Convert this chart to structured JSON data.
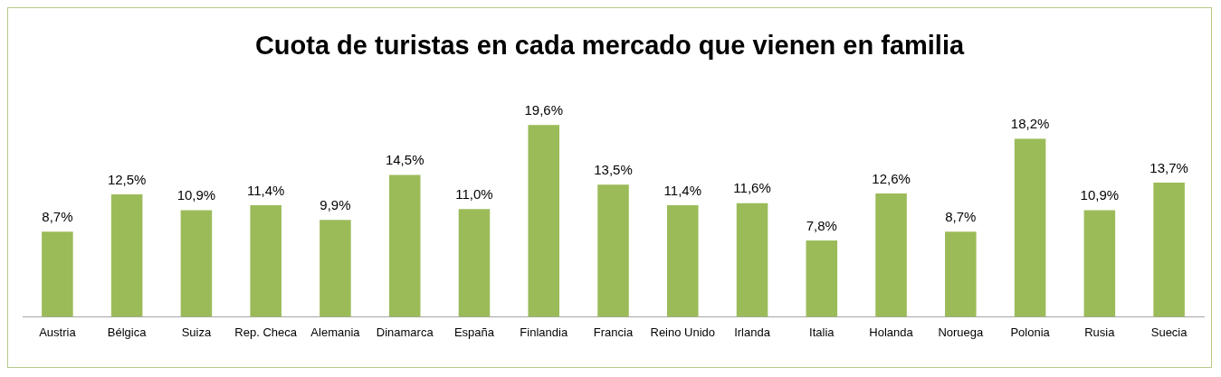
{
  "chart_data": {
    "type": "bar",
    "title": "Cuota de turistas en cada mercado que vienen en familia",
    "categories": [
      "Austria",
      "Bélgica",
      "Suiza",
      "Rep. Checa",
      "Alemania",
      "Dinamarca",
      "España",
      "Finlandia",
      "Francia",
      "Reino Unido",
      "Irlanda",
      "Italia",
      "Holanda",
      "Noruega",
      "Polonia",
      "Rusia",
      "Suecia"
    ],
    "values": [
      8.7,
      12.5,
      10.9,
      11.4,
      9.9,
      14.5,
      11.0,
      19.6,
      13.5,
      11.4,
      11.6,
      7.8,
      12.6,
      8.7,
      18.2,
      10.9,
      13.7
    ],
    "value_labels": [
      "8,7%",
      "12,5%",
      "10,9%",
      "11,4%",
      "9,9%",
      "14,5%",
      "11,0%",
      "19,6%",
      "13,5%",
      "11,4%",
      "11,6%",
      "7,8%",
      "12,6%",
      "8,7%",
      "18,2%",
      "10,9%",
      "13,7%"
    ],
    "color": "#9bbb59",
    "grid": false,
    "legend": false
  }
}
